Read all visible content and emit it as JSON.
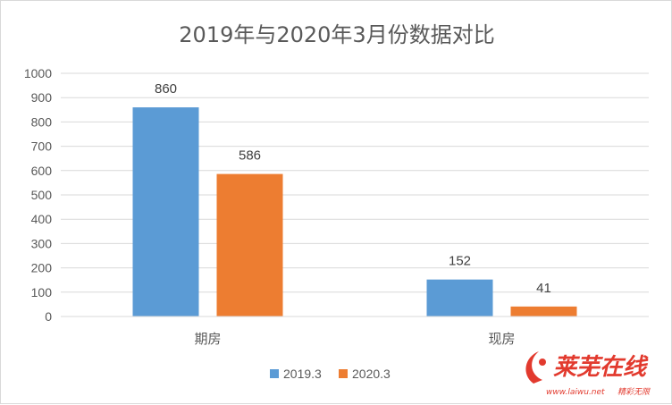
{
  "chart_data": {
    "type": "bar",
    "title": "2019年与2020年3月份数据对比",
    "categories": [
      "期房",
      "现房"
    ],
    "series": [
      {
        "name": "2019.3",
        "values": [
          860,
          152
        ],
        "color": "#5b9bd5"
      },
      {
        "name": "2020.3",
        "values": [
          586,
          41
        ],
        "color": "#ed7d31"
      }
    ],
    "ylim": [
      0,
      1000
    ],
    "yticks": [
      0,
      100,
      200,
      300,
      400,
      500,
      600,
      700,
      800,
      900,
      1000
    ],
    "grid": true,
    "legend": "bottom",
    "data_labels": true
  },
  "watermark": {
    "main": "莱芜在线",
    "site": "www.laiwu.net",
    "slogan": "精彩无限"
  }
}
